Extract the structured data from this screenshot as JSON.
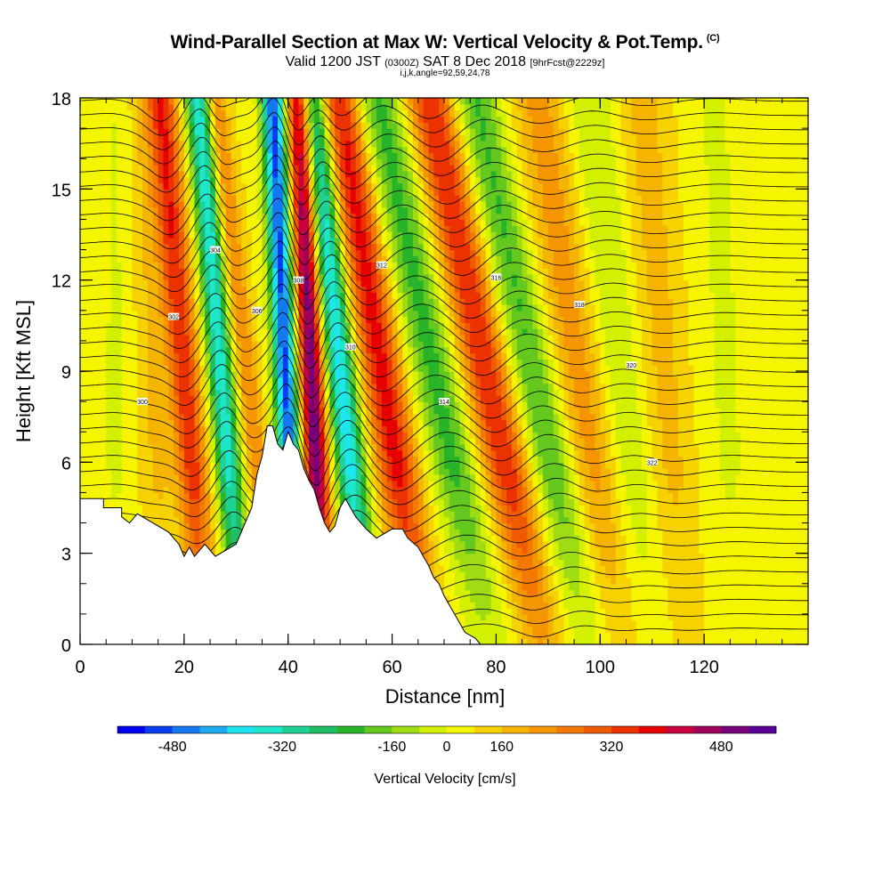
{
  "chart_data": {
    "type": "heatmap",
    "title": "Wind-Parallel Section at Max W: Vertical Velocity & Pot.Temp.",
    "title_mark": "(C)",
    "subtitle_valid": "Valid 1200 JST",
    "subtitle_utc": "(0300Z)",
    "subtitle_date": "SAT 8 Dec 2018",
    "subtitle_fcst": "[9hrFcst@2229z]",
    "subsubtitle": "i,j,k,angle=92,59,24,78",
    "xlabel": "Distance [nm]",
    "ylabel": "Height [Kft MSL]",
    "xlim": [
      0,
      140
    ],
    "ylim": [
      0,
      18
    ],
    "x_ticks": [
      "0",
      "20",
      "40",
      "60",
      "80",
      "100",
      "120"
    ],
    "y_ticks": [
      "0",
      "3",
      "6",
      "9",
      "12",
      "15",
      "18"
    ],
    "colorbar": {
      "title": "Vertical Velocity [cm/s]",
      "range": [
        -520,
        520
      ],
      "tick_labels": [
        "-480",
        "-320",
        "-160",
        "0",
        "160",
        "320",
        "480"
      ],
      "tick_values": [
        -480,
        -320,
        -160,
        0,
        160,
        320,
        480
      ],
      "colors": [
        "#0000f0",
        "#0a3cf0",
        "#1478f0",
        "#1eaaf0",
        "#1ee6f0",
        "#1ee6c8",
        "#1ed296",
        "#1ebe64",
        "#28b428",
        "#64c81e",
        "#a0dc14",
        "#d2f000",
        "#f5f500",
        "#f5d200",
        "#f5b400",
        "#f59600",
        "#f57800",
        "#f05a00",
        "#eb3200",
        "#e60000",
        "#c8003c",
        "#a0005a",
        "#780078",
        "#5a0096"
      ],
      "labelled_edges": [
        2,
        6,
        10,
        12,
        14,
        18,
        22
      ]
    },
    "w_features": [
      {
        "x0": 20,
        "slope": -0.22,
        "amp": 260,
        "sigma": 2.0
      },
      {
        "x0": 27,
        "slope": -0.22,
        "amp": -330,
        "sigma": 1.7
      },
      {
        "x0": 32,
        "slope": -0.3,
        "amp": 140,
        "sigma": 1.5
      },
      {
        "x0": 39.5,
        "slope": -0.12,
        "amp": -480,
        "sigma": 1.6
      },
      {
        "x0": 44.5,
        "slope": -0.12,
        "amp": 440,
        "sigma": 1.7
      },
      {
        "x0": 50,
        "slope": -0.28,
        "amp": -360,
        "sigma": 2.1
      },
      {
        "x0": 58,
        "slope": -0.42,
        "amp": 290,
        "sigma": 2.8
      },
      {
        "x0": 68,
        "slope": -0.55,
        "amp": -180,
        "sigma": 3.2
      },
      {
        "x0": 78,
        "slope": -0.55,
        "amp": 270,
        "sigma": 3.0
      },
      {
        "x0": 87,
        "slope": -0.55,
        "amp": -170,
        "sigma": 3.0
      },
      {
        "x0": 96,
        "slope": -0.4,
        "amp": 120,
        "sigma": 3.3
      },
      {
        "x0": 104,
        "slope": -0.3,
        "amp": -80,
        "sigma": 3.5
      },
      {
        "x0": 112,
        "slope": -0.2,
        "amp": 70,
        "sigma": 3.5
      },
      {
        "x0": 124,
        "slope": -0.1,
        "amp": -40,
        "sigma": 4.0
      },
      {
        "x0": 7,
        "slope": 0.0,
        "amp": -40,
        "sigma": 3.0
      },
      {
        "x0": 14,
        "slope": -0.1,
        "amp": 60,
        "sigma": 2.5
      }
    ],
    "terrain": [
      [
        0,
        4.8
      ],
      [
        4.5,
        4.8
      ],
      [
        4.5,
        4.5
      ],
      [
        8,
        4.5
      ],
      [
        8,
        4.2
      ],
      [
        9.5,
        4.0
      ],
      [
        11,
        4.3
      ],
      [
        14,
        4.0
      ],
      [
        17,
        3.7
      ],
      [
        19,
        3.3
      ],
      [
        20,
        2.9
      ],
      [
        21,
        3.2
      ],
      [
        22,
        2.9
      ],
      [
        24,
        3.3
      ],
      [
        26,
        2.9
      ],
      [
        28,
        3.1
      ],
      [
        30,
        3.3
      ],
      [
        33,
        4.5
      ],
      [
        34,
        5.6
      ],
      [
        35,
        6.2
      ],
      [
        36,
        7.2
      ],
      [
        37,
        7.2
      ],
      [
        38,
        6.6
      ],
      [
        39,
        6.4
      ],
      [
        40,
        7.0
      ],
      [
        41,
        6.6
      ],
      [
        42,
        6.4
      ],
      [
        43,
        5.8
      ],
      [
        44,
        5.4
      ],
      [
        45,
        5.1
      ],
      [
        46,
        4.5
      ],
      [
        47,
        4.0
      ],
      [
        48,
        3.7
      ],
      [
        49,
        3.9
      ],
      [
        50,
        4.5
      ],
      [
        51,
        4.8
      ],
      [
        52,
        4.5
      ],
      [
        53,
        4.2
      ],
      [
        54,
        4.0
      ],
      [
        55,
        3.8
      ],
      [
        57,
        3.5
      ],
      [
        60,
        3.8
      ],
      [
        62,
        3.8
      ],
      [
        63,
        3.5
      ],
      [
        65,
        3.2
      ],
      [
        66,
        2.9
      ],
      [
        67,
        2.6
      ],
      [
        68,
        2.2
      ],
      [
        69,
        2.0
      ],
      [
        70,
        1.6
      ],
      [
        71,
        1.3
      ],
      [
        72,
        1.0
      ],
      [
        73,
        0.7
      ],
      [
        74,
        0.4
      ],
      [
        75,
        0.3
      ],
      [
        76,
        0.2
      ],
      [
        77,
        0.0
      ],
      [
        140,
        0.0
      ]
    ],
    "theta_labels": [
      "300",
      "302",
      "304",
      "306",
      "308",
      "310",
      "312",
      "314",
      "316",
      "318",
      "320",
      "322"
    ]
  }
}
